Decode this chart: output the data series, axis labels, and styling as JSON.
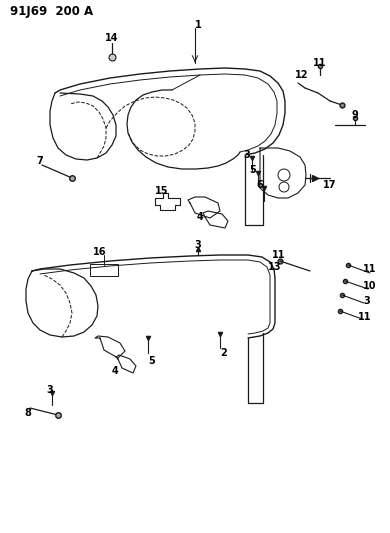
{
  "title": "91J69 200 A",
  "bg": "#ffffff",
  "lc": "#1a1a1a",
  "label_fs": 7,
  "title_fs": 8.5
}
